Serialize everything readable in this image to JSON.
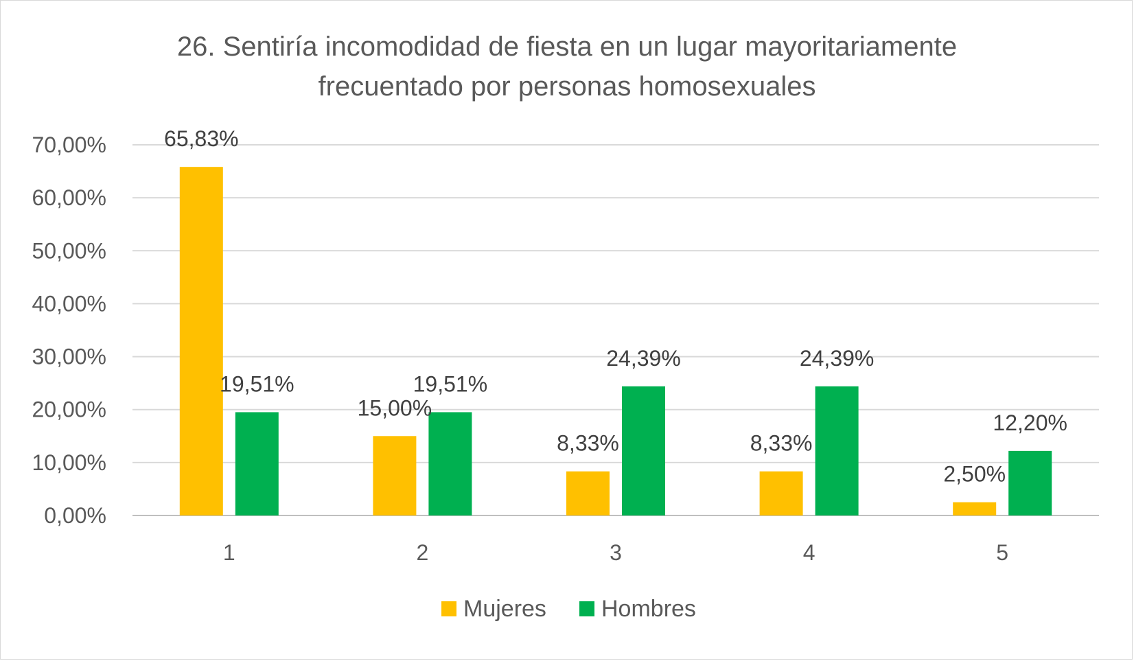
{
  "chart_data": {
    "type": "bar",
    "title": "26. Sentiría incomodidad de fiesta en un lugar mayoritariamente frecuentado por personas homosexuales",
    "title_lines": [
      "26. Sentiría incomodidad de fiesta en un lugar mayoritariamente",
      "frecuentado por personas homosexuales"
    ],
    "categories": [
      "1",
      "2",
      "3",
      "4",
      "5"
    ],
    "series": [
      {
        "name": "Mujeres",
        "color": "#FFC000",
        "values": [
          65.83,
          15.0,
          8.33,
          8.33,
          2.5
        ],
        "labels": [
          "65,83%",
          "15,00%",
          "8,33%",
          "8,33%",
          "2,50%"
        ]
      },
      {
        "name": "Hombres",
        "color": "#00B050",
        "values": [
          19.51,
          19.51,
          24.39,
          24.39,
          12.2
        ],
        "labels": [
          "19,51%",
          "19,51%",
          "24,39%",
          "24,39%",
          "12,20%"
        ]
      }
    ],
    "yticks": [
      0,
      10,
      20,
      30,
      40,
      50,
      60,
      70
    ],
    "ytick_labels": [
      "0,00%",
      "10,00%",
      "20,00%",
      "30,00%",
      "40,00%",
      "50,00%",
      "60,00%",
      "70,00%"
    ],
    "ylim": [
      0,
      70
    ],
    "xlabel": "",
    "ylabel": "",
    "grid": true,
    "legend_position": "bottom"
  }
}
